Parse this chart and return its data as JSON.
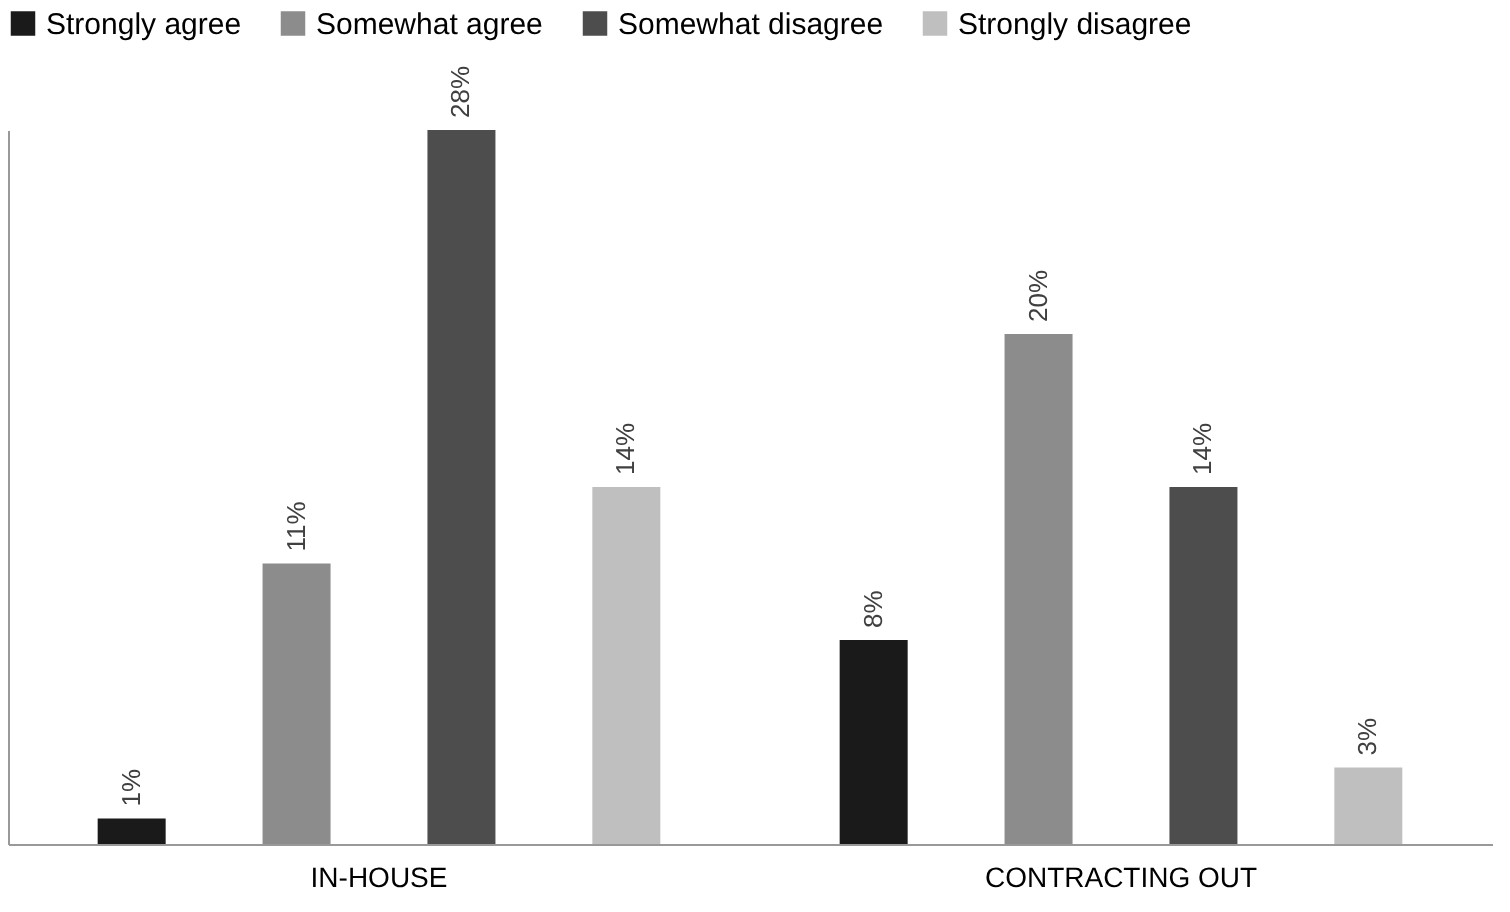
{
  "chart_data": {
    "type": "bar",
    "relative": false,
    "categories": [
      "IN-HOUSE",
      "CONTRACTING OUT"
    ],
    "series": [
      {
        "name": "Strongly agree",
        "color": "#1a1a1a",
        "values": [
          1,
          8
        ],
        "value_labels": [
          "1%",
          "8%"
        ]
      },
      {
        "name": "Somewhat agree",
        "color": "#8c8c8c",
        "values": [
          11,
          20
        ],
        "value_labels": [
          "11%",
          "20%"
        ]
      },
      {
        "name": "Somewhat disagree",
        "color": "#4d4d4d",
        "values": [
          28,
          14
        ],
        "value_labels": [
          "28%",
          "14%"
        ]
      },
      {
        "name": "Strongly disagree",
        "color": "#bfbfbf",
        "values": [
          14,
          3
        ],
        "value_labels": [
          "14%",
          "3%"
        ]
      }
    ],
    "legend": "top",
    "grid": false
  }
}
